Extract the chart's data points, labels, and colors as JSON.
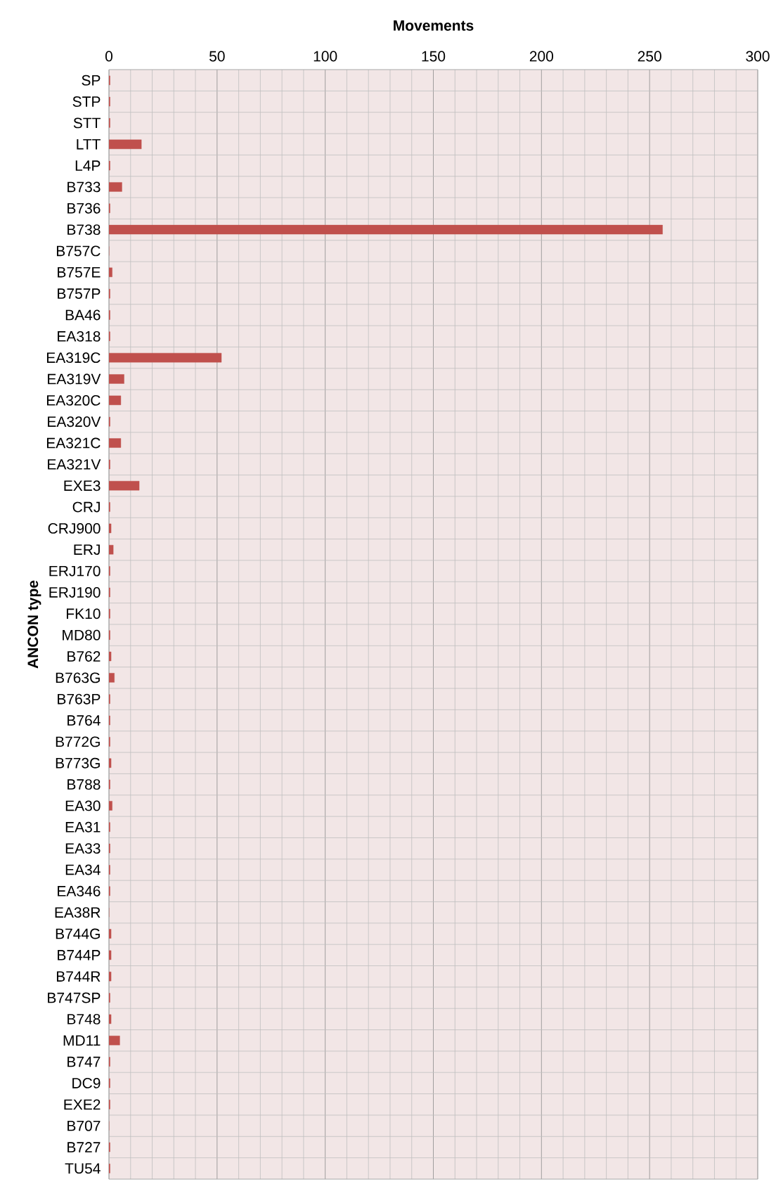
{
  "chart_data": {
    "type": "bar",
    "orientation": "horizontal",
    "xlabel": "Movements",
    "ylabel": "ANCON type",
    "categories": [
      "SP",
      "STP",
      "STT",
      "LTT",
      "L4P",
      "B733",
      "B736",
      "B738",
      "B757C",
      "B757E",
      "B757P",
      "BA46",
      "EA318",
      "EA319C",
      "EA319V",
      "EA320C",
      "EA320V",
      "EA321C",
      "EA321V",
      "EXE3",
      "CRJ",
      "CRJ900",
      "ERJ",
      "ERJ170",
      "ERJ190",
      "FK10",
      "MD80",
      "B762",
      "B763G",
      "B763P",
      "B764",
      "B772G",
      "B773G",
      "B788",
      "EA30",
      "EA31",
      "EA33",
      "EA34",
      "EA346",
      "EA38R",
      "B744G",
      "B744P",
      "B744R",
      "B747SP",
      "B748",
      "MD11",
      "B747",
      "DC9",
      "EXE2",
      "B707",
      "B727",
      "TU54"
    ],
    "values": [
      0.5,
      0.5,
      0.5,
      15,
      0.5,
      6,
      0.5,
      256,
      0,
      1.5,
      0.5,
      0.5,
      0.5,
      52,
      7,
      5.5,
      0.5,
      5.5,
      0.5,
      14,
      0.5,
      1,
      2,
      0.5,
      0.5,
      0.5,
      0.5,
      1,
      2.5,
      0.5,
      0.5,
      0.5,
      1,
      0.5,
      1.5,
      0.5,
      0.5,
      0.5,
      0.5,
      0,
      1,
      1,
      1,
      0.5,
      1,
      5,
      0.5,
      0.5,
      0.5,
      0,
      0.5,
      0.5
    ],
    "color": "#c0504d",
    "xlim": [
      0,
      300
    ],
    "xticks": [
      0,
      50,
      100,
      150,
      200,
      250,
      300
    ],
    "grid": true
  }
}
